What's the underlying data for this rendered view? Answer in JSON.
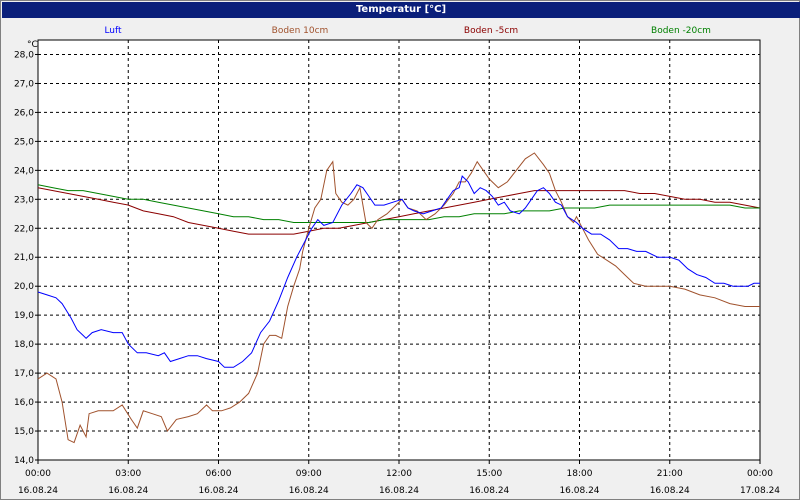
{
  "window": {
    "title": "Temperatur [°C]"
  },
  "chart_data": {
    "type": "line",
    "title": "Temperatur [°C]",
    "ylabel": "°C",
    "ylim": [
      14.0,
      28.5
    ],
    "yticks": [
      "14,0",
      "15,0",
      "16,0",
      "17,0",
      "18,0",
      "19,0",
      "20,0",
      "21,0",
      "22,0",
      "23,0",
      "24,0",
      "25,0",
      "26,0",
      "27,0",
      "28,0"
    ],
    "xlim": [
      0,
      24
    ],
    "xticks": [
      {
        "time": "00:00",
        "date": "16.08.24"
      },
      {
        "time": "03:00",
        "date": "16.08.24"
      },
      {
        "time": "06:00",
        "date": "16.08.24"
      },
      {
        "time": "09:00",
        "date": "16.08.24"
      },
      {
        "time": "12:00",
        "date": "16.08.24"
      },
      {
        "time": "15:00",
        "date": "16.08.24"
      },
      {
        "time": "18:00",
        "date": "16.08.24"
      },
      {
        "time": "21:00",
        "date": "16.08.24"
      },
      {
        "time": "00:00",
        "date": "17.08.24"
      }
    ],
    "grid": true,
    "legend_position": "top",
    "series": [
      {
        "name": "Luft",
        "color": "#0000ff",
        "points": [
          [
            0,
            19.8
          ],
          [
            0.3,
            19.7
          ],
          [
            0.6,
            19.6
          ],
          [
            0.8,
            19.4
          ],
          [
            1.1,
            18.9
          ],
          [
            1.3,
            18.5
          ],
          [
            1.5,
            18.3
          ],
          [
            1.6,
            18.2
          ],
          [
            1.8,
            18.4
          ],
          [
            2.1,
            18.5
          ],
          [
            2.5,
            18.4
          ],
          [
            2.8,
            18.4
          ],
          [
            3.0,
            18.0
          ],
          [
            3.3,
            17.7
          ],
          [
            3.6,
            17.7
          ],
          [
            4.0,
            17.6
          ],
          [
            4.2,
            17.7
          ],
          [
            4.4,
            17.4
          ],
          [
            4.7,
            17.5
          ],
          [
            5.0,
            17.6
          ],
          [
            5.3,
            17.6
          ],
          [
            5.6,
            17.5
          ],
          [
            6.0,
            17.4
          ],
          [
            6.2,
            17.2
          ],
          [
            6.5,
            17.2
          ],
          [
            6.8,
            17.4
          ],
          [
            7.1,
            17.7
          ],
          [
            7.4,
            18.4
          ],
          [
            7.7,
            18.8
          ],
          [
            8.0,
            19.5
          ],
          [
            8.3,
            20.3
          ],
          [
            8.6,
            21.0
          ],
          [
            8.9,
            21.6
          ],
          [
            9.1,
            22.0
          ],
          [
            9.3,
            22.3
          ],
          [
            9.5,
            22.1
          ],
          [
            9.8,
            22.2
          ],
          [
            10.1,
            22.8
          ],
          [
            10.4,
            23.2
          ],
          [
            10.6,
            23.5
          ],
          [
            10.8,
            23.4
          ],
          [
            11.0,
            23.1
          ],
          [
            11.2,
            22.8
          ],
          [
            11.5,
            22.8
          ],
          [
            11.8,
            22.9
          ],
          [
            12.1,
            23.0
          ],
          [
            12.3,
            22.7
          ],
          [
            12.5,
            22.6
          ],
          [
            12.8,
            22.5
          ],
          [
            13.1,
            22.6
          ],
          [
            13.4,
            22.7
          ],
          [
            13.6,
            23.0
          ],
          [
            13.8,
            23.3
          ],
          [
            14.0,
            23.4
          ],
          [
            14.1,
            23.8
          ],
          [
            14.3,
            23.6
          ],
          [
            14.5,
            23.2
          ],
          [
            14.7,
            23.4
          ],
          [
            14.9,
            23.3
          ],
          [
            15.1,
            23.1
          ],
          [
            15.3,
            22.8
          ],
          [
            15.5,
            22.9
          ],
          [
            15.7,
            22.6
          ],
          [
            16.0,
            22.5
          ],
          [
            16.2,
            22.7
          ],
          [
            16.4,
            23.0
          ],
          [
            16.6,
            23.3
          ],
          [
            16.8,
            23.4
          ],
          [
            17.0,
            23.2
          ],
          [
            17.2,
            22.9
          ],
          [
            17.4,
            22.8
          ],
          [
            17.6,
            22.4
          ],
          [
            17.9,
            22.2
          ],
          [
            18.1,
            22.0
          ],
          [
            18.4,
            21.8
          ],
          [
            18.7,
            21.8
          ],
          [
            19.0,
            21.6
          ],
          [
            19.3,
            21.3
          ],
          [
            19.6,
            21.3
          ],
          [
            19.9,
            21.2
          ],
          [
            20.2,
            21.2
          ],
          [
            20.6,
            21.0
          ],
          [
            21.0,
            21.0
          ],
          [
            21.3,
            20.9
          ],
          [
            21.6,
            20.6
          ],
          [
            21.9,
            20.4
          ],
          [
            22.2,
            20.3
          ],
          [
            22.5,
            20.1
          ],
          [
            22.8,
            20.1
          ],
          [
            23.1,
            20.0
          ],
          [
            23.4,
            20.0
          ],
          [
            23.6,
            20.0
          ],
          [
            23.8,
            20.1
          ],
          [
            24.0,
            20.1
          ]
        ]
      },
      {
        "name": "Boden 10cm",
        "color": "#a0522d",
        "points": [
          [
            0,
            16.8
          ],
          [
            0.3,
            17.0
          ],
          [
            0.6,
            16.8
          ],
          [
            0.8,
            16.0
          ],
          [
            1.0,
            14.7
          ],
          [
            1.2,
            14.6
          ],
          [
            1.4,
            15.2
          ],
          [
            1.6,
            14.8
          ],
          [
            1.7,
            15.6
          ],
          [
            2.0,
            15.7
          ],
          [
            2.5,
            15.7
          ],
          [
            2.8,
            15.9
          ],
          [
            3.1,
            15.4
          ],
          [
            3.3,
            15.1
          ],
          [
            3.5,
            15.7
          ],
          [
            3.8,
            15.6
          ],
          [
            4.1,
            15.5
          ],
          [
            4.3,
            15.0
          ],
          [
            4.6,
            15.4
          ],
          [
            5.0,
            15.5
          ],
          [
            5.3,
            15.6
          ],
          [
            5.6,
            15.9
          ],
          [
            5.8,
            15.7
          ],
          [
            6.1,
            15.7
          ],
          [
            6.4,
            15.8
          ],
          [
            6.7,
            16.0
          ],
          [
            7.0,
            16.3
          ],
          [
            7.3,
            17.0
          ],
          [
            7.5,
            18.0
          ],
          [
            7.7,
            18.3
          ],
          [
            7.9,
            18.3
          ],
          [
            8.1,
            18.2
          ],
          [
            8.3,
            19.3
          ],
          [
            8.5,
            20.0
          ],
          [
            8.7,
            20.6
          ],
          [
            8.8,
            21.2
          ],
          [
            9.0,
            22.0
          ],
          [
            9.2,
            22.7
          ],
          [
            9.4,
            23.0
          ],
          [
            9.6,
            24.0
          ],
          [
            9.8,
            24.3
          ],
          [
            9.9,
            23.2
          ],
          [
            10.1,
            22.9
          ],
          [
            10.3,
            22.8
          ],
          [
            10.5,
            23.0
          ],
          [
            10.7,
            23.4
          ],
          [
            10.9,
            22.2
          ],
          [
            11.1,
            22.0
          ],
          [
            11.3,
            22.3
          ],
          [
            11.6,
            22.5
          ],
          [
            11.9,
            22.8
          ],
          [
            12.1,
            23.0
          ],
          [
            12.3,
            22.7
          ],
          [
            12.6,
            22.6
          ],
          [
            12.9,
            22.3
          ],
          [
            13.2,
            22.5
          ],
          [
            13.5,
            22.8
          ],
          [
            13.8,
            23.2
          ],
          [
            14.0,
            23.6
          ],
          [
            14.2,
            23.6
          ],
          [
            14.4,
            23.9
          ],
          [
            14.6,
            24.3
          ],
          [
            14.8,
            24.0
          ],
          [
            15.0,
            23.7
          ],
          [
            15.3,
            23.4
          ],
          [
            15.6,
            23.6
          ],
          [
            15.9,
            24.0
          ],
          [
            16.2,
            24.4
          ],
          [
            16.5,
            24.6
          ],
          [
            16.8,
            24.2
          ],
          [
            17.0,
            23.9
          ],
          [
            17.2,
            23.3
          ],
          [
            17.4,
            22.9
          ],
          [
            17.6,
            22.4
          ],
          [
            17.8,
            22.2
          ],
          [
            17.9,
            22.4
          ],
          [
            18.1,
            22.0
          ],
          [
            18.3,
            21.6
          ],
          [
            18.6,
            21.1
          ],
          [
            18.9,
            20.9
          ],
          [
            19.2,
            20.7
          ],
          [
            19.5,
            20.4
          ],
          [
            19.8,
            20.1
          ],
          [
            20.2,
            20.0
          ],
          [
            20.6,
            20.0
          ],
          [
            21.0,
            20.0
          ],
          [
            21.5,
            19.9
          ],
          [
            22.0,
            19.7
          ],
          [
            22.5,
            19.6
          ],
          [
            23.0,
            19.4
          ],
          [
            23.5,
            19.3
          ],
          [
            24.0,
            19.3
          ]
        ]
      },
      {
        "name": "Boden -5cm",
        "color": "#8b0000",
        "points": [
          [
            0,
            23.4
          ],
          [
            0.5,
            23.3
          ],
          [
            1.0,
            23.2
          ],
          [
            1.5,
            23.1
          ],
          [
            2.0,
            23.0
          ],
          [
            2.5,
            22.9
          ],
          [
            3.0,
            22.8
          ],
          [
            3.5,
            22.6
          ],
          [
            4.0,
            22.5
          ],
          [
            4.5,
            22.4
          ],
          [
            5.0,
            22.2
          ],
          [
            5.5,
            22.1
          ],
          [
            6.0,
            22.0
          ],
          [
            6.5,
            21.9
          ],
          [
            7.0,
            21.8
          ],
          [
            7.5,
            21.8
          ],
          [
            8.0,
            21.8
          ],
          [
            8.5,
            21.8
          ],
          [
            9.0,
            21.9
          ],
          [
            9.5,
            22.0
          ],
          [
            10.0,
            22.0
          ],
          [
            10.5,
            22.1
          ],
          [
            11.0,
            22.2
          ],
          [
            11.5,
            22.3
          ],
          [
            12.0,
            22.4
          ],
          [
            12.5,
            22.5
          ],
          [
            13.0,
            22.6
          ],
          [
            13.5,
            22.7
          ],
          [
            14.0,
            22.8
          ],
          [
            14.5,
            22.9
          ],
          [
            15.0,
            23.0
          ],
          [
            15.5,
            23.1
          ],
          [
            16.0,
            23.2
          ],
          [
            16.5,
            23.3
          ],
          [
            17.0,
            23.3
          ],
          [
            17.5,
            23.3
          ],
          [
            18.0,
            23.3
          ],
          [
            18.5,
            23.3
          ],
          [
            19.0,
            23.3
          ],
          [
            19.5,
            23.3
          ],
          [
            20.0,
            23.2
          ],
          [
            20.5,
            23.2
          ],
          [
            21.0,
            23.1
          ],
          [
            21.5,
            23.0
          ],
          [
            22.0,
            23.0
          ],
          [
            22.5,
            22.9
          ],
          [
            23.0,
            22.9
          ],
          [
            23.5,
            22.8
          ],
          [
            24.0,
            22.7
          ]
        ]
      },
      {
        "name": "Boden -20cm",
        "color": "#008000",
        "points": [
          [
            0,
            23.5
          ],
          [
            0.5,
            23.4
          ],
          [
            1.0,
            23.3
          ],
          [
            1.5,
            23.3
          ],
          [
            2.0,
            23.2
          ],
          [
            2.5,
            23.1
          ],
          [
            3.0,
            23.0
          ],
          [
            3.5,
            23.0
          ],
          [
            4.0,
            22.9
          ],
          [
            4.5,
            22.8
          ],
          [
            5.0,
            22.7
          ],
          [
            5.5,
            22.6
          ],
          [
            6.0,
            22.5
          ],
          [
            6.5,
            22.4
          ],
          [
            7.0,
            22.4
          ],
          [
            7.5,
            22.3
          ],
          [
            8.0,
            22.3
          ],
          [
            8.5,
            22.2
          ],
          [
            9.0,
            22.2
          ],
          [
            9.5,
            22.2
          ],
          [
            10.0,
            22.2
          ],
          [
            10.5,
            22.2
          ],
          [
            11.0,
            22.2
          ],
          [
            11.5,
            22.3
          ],
          [
            12.0,
            22.3
          ],
          [
            12.5,
            22.3
          ],
          [
            13.0,
            22.3
          ],
          [
            13.5,
            22.4
          ],
          [
            14.0,
            22.4
          ],
          [
            14.5,
            22.5
          ],
          [
            15.0,
            22.5
          ],
          [
            15.5,
            22.5
          ],
          [
            16.0,
            22.6
          ],
          [
            16.5,
            22.6
          ],
          [
            17.0,
            22.6
          ],
          [
            17.5,
            22.7
          ],
          [
            18.0,
            22.7
          ],
          [
            18.5,
            22.7
          ],
          [
            19.0,
            22.8
          ],
          [
            19.5,
            22.8
          ],
          [
            20.0,
            22.8
          ],
          [
            20.5,
            22.8
          ],
          [
            21.0,
            22.8
          ],
          [
            21.5,
            22.8
          ],
          [
            22.0,
            22.8
          ],
          [
            22.5,
            22.8
          ],
          [
            23.0,
            22.8
          ],
          [
            23.5,
            22.7
          ],
          [
            24.0,
            22.7
          ]
        ]
      }
    ]
  }
}
